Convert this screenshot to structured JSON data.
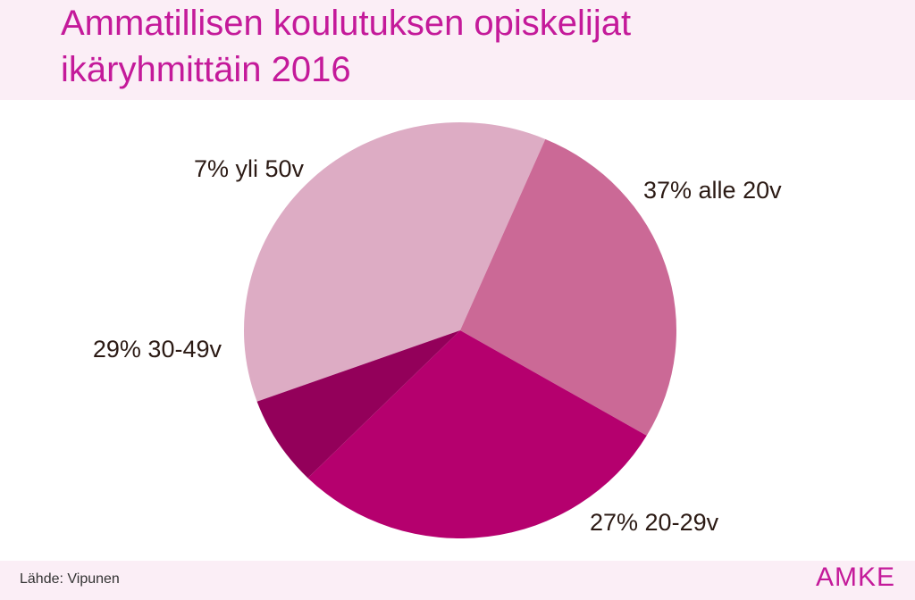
{
  "header": {
    "title_line1": "Ammatillisen koulutuksen opiskelijat",
    "title_line2": "ikäryhmittäin 2016"
  },
  "footer": {
    "source": "Lähde: Vipunen",
    "logo_text": "AMKE"
  },
  "colors": {
    "title": "#c41a9a",
    "band": "#fbeef6",
    "text": "#2b1a14"
  },
  "chart_data": {
    "type": "pie",
    "title": "Ammatillisen koulutuksen opiskelijat ikäryhmittäin 2016",
    "slices": [
      {
        "label": "37% alle 20v",
        "value": 37,
        "color": "#ddacc4"
      },
      {
        "label": "27% 20-29v",
        "value": 27,
        "color": "#cb6996"
      },
      {
        "label": "29% 30-49v",
        "value": 29,
        "color": "#b5006e"
      },
      {
        "label": "7% yli 50v",
        "value": 7,
        "color": "#93005a"
      }
    ]
  }
}
